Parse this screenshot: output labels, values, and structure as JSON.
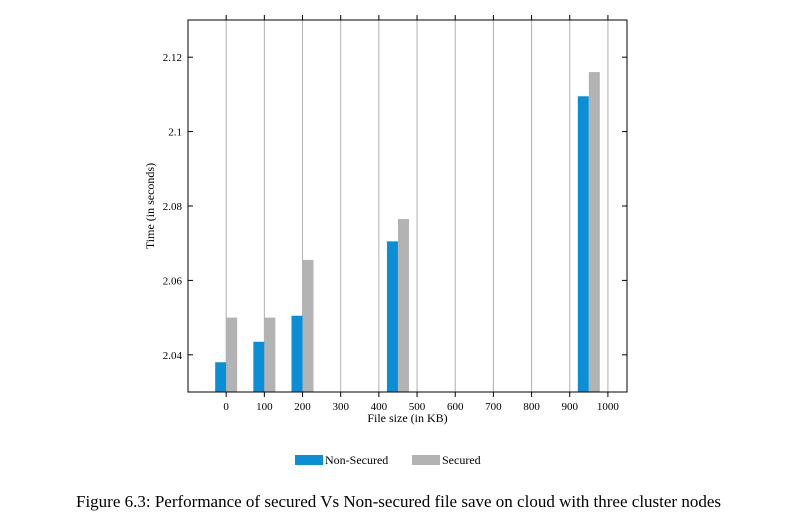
{
  "chart_data": {
    "type": "bar",
    "title": "",
    "xlabel": "File size (in KB)",
    "ylabel": "Time (in seconds)",
    "x_tick_labels": [
      "0",
      "100",
      "200",
      "300",
      "400",
      "500",
      "600",
      "700",
      "800",
      "900",
      "1000"
    ],
    "categories": [
      "0",
      "100",
      "200",
      "500",
      "1000"
    ],
    "category_x": [
      0,
      100,
      200,
      450,
      950
    ],
    "series": [
      {
        "name": "Non-Secured",
        "values": [
          2.038,
          2.0435,
          2.0505,
          2.0705,
          2.1095
        ],
        "color": "#0a8fd6"
      },
      {
        "name": "Secured",
        "values": [
          2.05,
          2.05,
          2.0655,
          2.0765,
          2.116
        ],
        "color": "#b3b3b3"
      }
    ],
    "xlim": [
      -100,
      1050
    ],
    "ylim": [
      2.03,
      2.13
    ],
    "yticks": [
      2.04,
      2.06,
      2.08,
      2.1,
      2.12
    ],
    "ytick_labels": [
      "2.04",
      "2.06",
      "2.08",
      "2.1",
      "2.12"
    ],
    "grid": "vertical",
    "legend_position": "bottom-center"
  },
  "caption": "Figure 6.3: Performance of secured Vs Non-secured file save on cloud with three cluster nodes"
}
